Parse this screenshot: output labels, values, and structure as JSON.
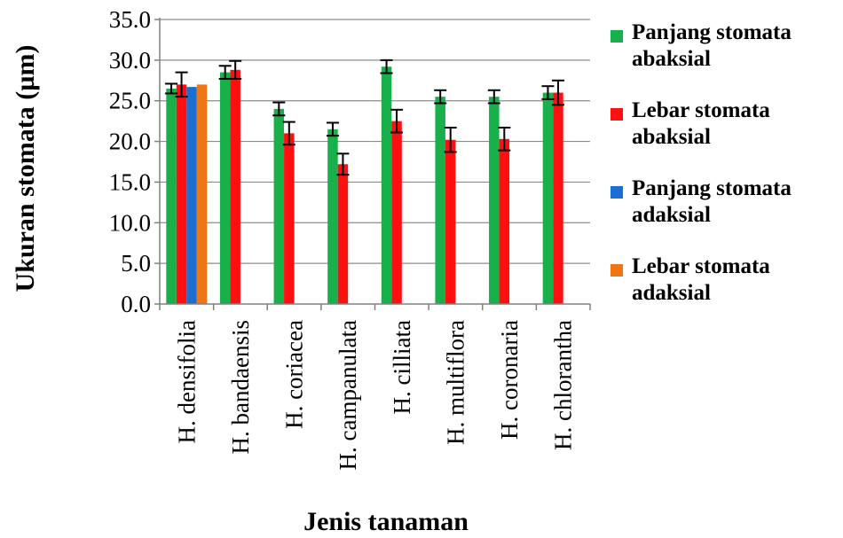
{
  "chart_data": {
    "type": "bar",
    "title": "",
    "xlabel": "Jenis tanaman",
    "ylabel": "Ukuran stomata (µm)",
    "ylim": [
      0,
      35
    ],
    "yticks": [
      "0.0",
      "5.0",
      "10.0",
      "15.0",
      "20.0",
      "25.0",
      "30.0",
      "35.0"
    ],
    "grid": true,
    "legend_position": "right",
    "categories": [
      "H. densifolia",
      "H. bandaensis",
      "H. coriacea",
      "H. campanulata",
      "H. cilliata",
      "H. multiflora",
      "H. coronaria",
      "H. chlorantha"
    ],
    "series": [
      {
        "name_lines": [
          "Panjang stomata",
          "abaksial"
        ],
        "color": "#18b04a",
        "values": [
          26.5,
          28.5,
          24.0,
          21.5,
          29.2,
          25.5,
          25.5,
          26.0
        ],
        "errors": [
          0.6,
          0.8,
          0.8,
          0.8,
          0.8,
          0.8,
          0.8,
          0.8
        ]
      },
      {
        "name_lines": [
          "Lebar stomata",
          "abaksial"
        ],
        "color": "#ff1010",
        "values": [
          27.0,
          28.8,
          21.0,
          17.2,
          22.5,
          20.2,
          20.3,
          26.0
        ],
        "errors": [
          1.5,
          1.1,
          1.4,
          1.3,
          1.4,
          1.5,
          1.4,
          1.5
        ]
      },
      {
        "name_lines": [
          "Panjang stomata",
          "adaksial"
        ],
        "color": "#1a6fd0",
        "values": [
          26.7,
          null,
          null,
          null,
          null,
          null,
          null,
          null
        ],
        "errors": [
          null,
          null,
          null,
          null,
          null,
          null,
          null,
          null
        ]
      },
      {
        "name_lines": [
          "Lebar stomata",
          "adaksial"
        ],
        "color": "#ee7616",
        "values": [
          27.0,
          null,
          null,
          null,
          null,
          null,
          null,
          null
        ],
        "errors": [
          null,
          null,
          null,
          null,
          null,
          null,
          null,
          null
        ]
      }
    ]
  }
}
